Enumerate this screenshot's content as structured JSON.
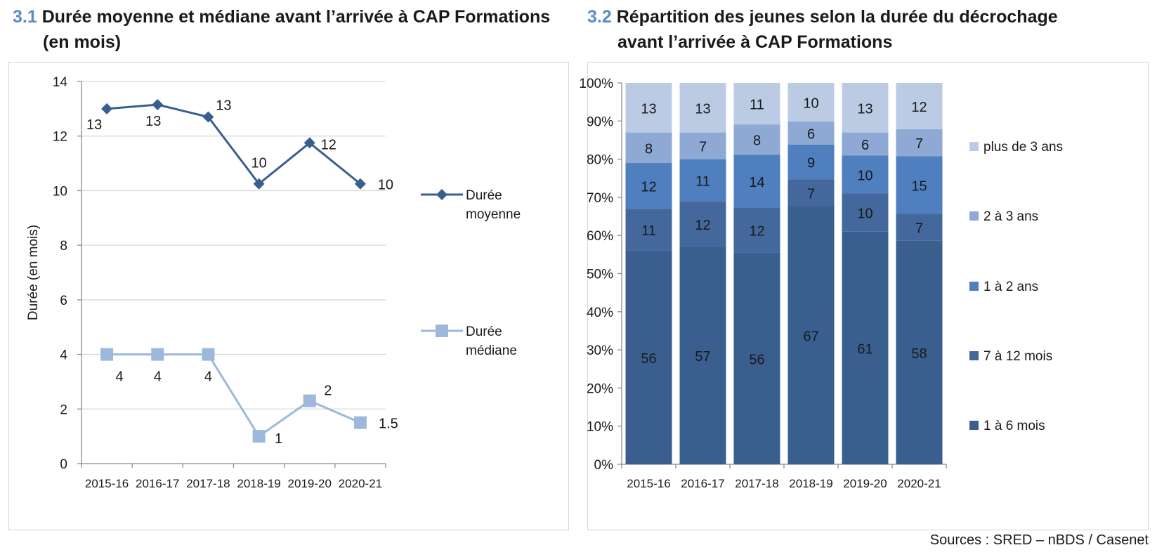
{
  "chart_data": [
    {
      "type": "line",
      "title_number": "3.1",
      "title_line1": "Durée moyenne et médiane avant l’arrivée à CAP Formations",
      "title_line2": "(en mois)",
      "ylabel": "Durée (en mois)",
      "xlabel": "",
      "ylim": [
        0,
        14
      ],
      "yticks": [
        "0",
        "2",
        "4",
        "6",
        "8",
        "10",
        "12",
        "14"
      ],
      "categories": [
        "2015-16",
        "2016-17",
        "2017-18",
        "2018-19",
        "2019-20",
        "2020-21"
      ],
      "grid": true,
      "legend_position": "right",
      "series": [
        {
          "name": "Durée moyenne",
          "legend_line1": "Durée",
          "legend_line2": "moyenne",
          "values": [
            13.0,
            13.15,
            12.7,
            10.25,
            11.75,
            10.25
          ],
          "labels": [
            "13",
            "13",
            "13",
            "10",
            "12",
            "10"
          ],
          "color": "#3a5f8f",
          "marker": "diamond"
        },
        {
          "name": "Durée médiane",
          "legend_line1": "Durée",
          "legend_line2": "médiane",
          "values": [
            4,
            4,
            4,
            1,
            2.3,
            1.5
          ],
          "labels": [
            "4",
            "4",
            "4",
            "1",
            "2",
            "1.5"
          ],
          "color": "#9db8da",
          "marker": "square"
        }
      ]
    },
    {
      "type": "bar",
      "stacked": true,
      "title_number": "3.2",
      "title_line1": "Répartition des jeunes selon la durée du décrochage",
      "title_line2": "avant l’arrivée à CAP Formations",
      "ylim": [
        0,
        100
      ],
      "yticks": [
        "0%",
        "10%",
        "20%",
        "30%",
        "40%",
        "50%",
        "60%",
        "70%",
        "80%",
        "90%",
        "100%"
      ],
      "categories": [
        "2015-16",
        "2016-17",
        "2017-18",
        "2018-19",
        "2019-20",
        "2020-21"
      ],
      "grid": false,
      "legend_position": "right",
      "series": [
        {
          "name": "1 à 6 mois",
          "color": "#3a5f8f",
          "values": [
            56,
            57,
            56,
            67,
            61,
            58
          ]
        },
        {
          "name": "7 à 12 mois",
          "color": "#44689c",
          "values": [
            11,
            12,
            12,
            7,
            10,
            7
          ]
        },
        {
          "name": "1 à 2 ans",
          "color": "#4f7fbf",
          "values": [
            12,
            11,
            14,
            9,
            10,
            15
          ]
        },
        {
          "name": "2 à 3 ans",
          "color": "#8ea9d4",
          "values": [
            8,
            7,
            8,
            6,
            6,
            7
          ]
        },
        {
          "name": "plus de 3 ans",
          "color": "#bccbe4",
          "values": [
            13,
            13,
            11,
            10,
            13,
            12
          ]
        }
      ]
    }
  ],
  "source": "Sources : SRED – nBDS / Casenet"
}
